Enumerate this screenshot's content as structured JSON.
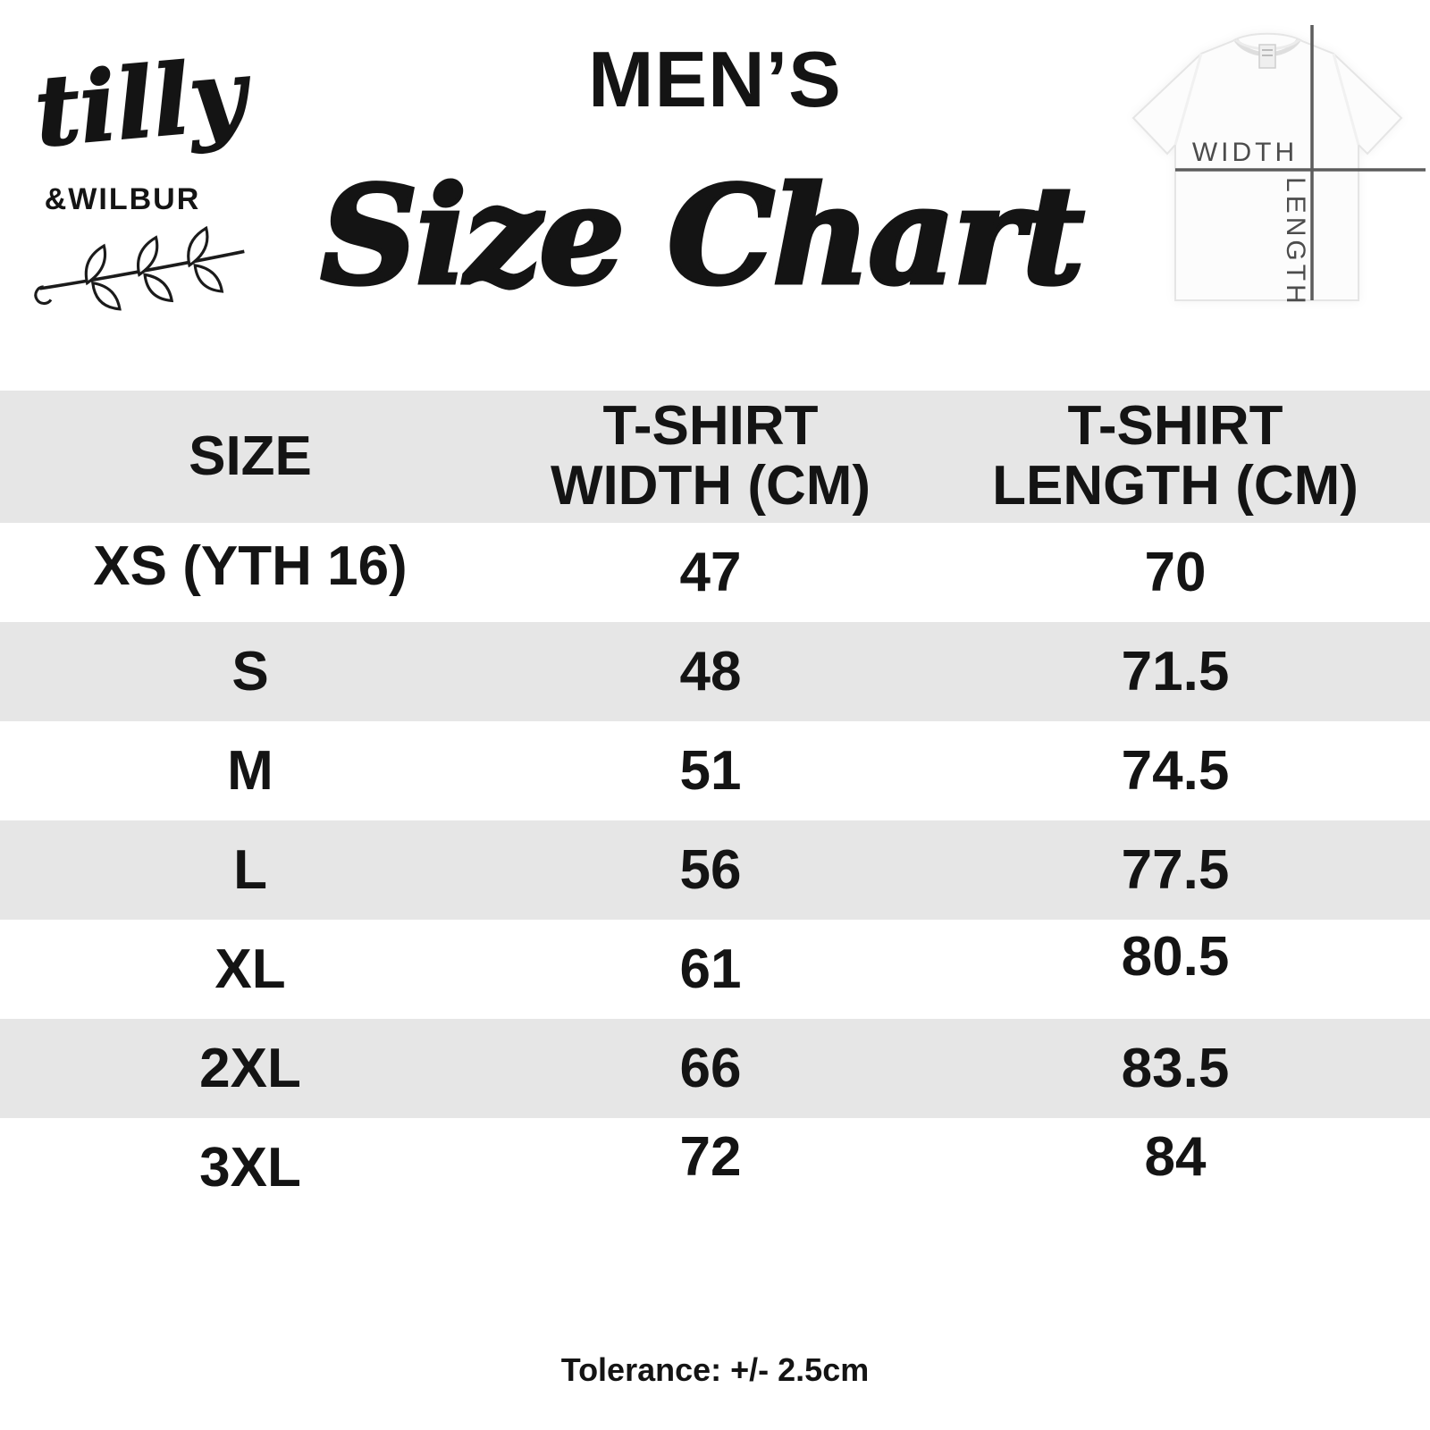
{
  "brand": {
    "name_script": "tilly",
    "name_caps": "&WILBUR"
  },
  "header": {
    "category": "MEN’S",
    "title": "Size Chart"
  },
  "diagram": {
    "width_label": "WIDTH",
    "length_label": "LENGTH"
  },
  "table": {
    "columns_lines": [
      [
        "SIZE"
      ],
      [
        "T-SHIRT",
        "WIDTH (CM)"
      ],
      [
        "T-SHIRT",
        "LENGTH (CM)"
      ]
    ]
  },
  "chart_data": {
    "type": "table",
    "title": "MEN'S Size Chart",
    "columns": [
      "SIZE",
      "T-SHIRT WIDTH (CM)",
      "T-SHIRT LENGTH (CM)"
    ],
    "rows": [
      [
        "XS (YTH 16)",
        47,
        70
      ],
      [
        "S",
        48,
        71.5
      ],
      [
        "M",
        51,
        74.5
      ],
      [
        "L",
        56,
        77.5
      ],
      [
        "XL",
        61,
        80.5
      ],
      [
        "2XL",
        66,
        83.5
      ],
      [
        "3XL",
        72,
        84
      ]
    ],
    "footnote": "Tolerance: +/- 2.5cm"
  },
  "footer": {
    "tolerance": "Tolerance: +/- 2.5cm"
  },
  "colors": {
    "stripe": "#e6e6e6",
    "text": "#141414",
    "diagram_line": "#5c5c5c"
  }
}
